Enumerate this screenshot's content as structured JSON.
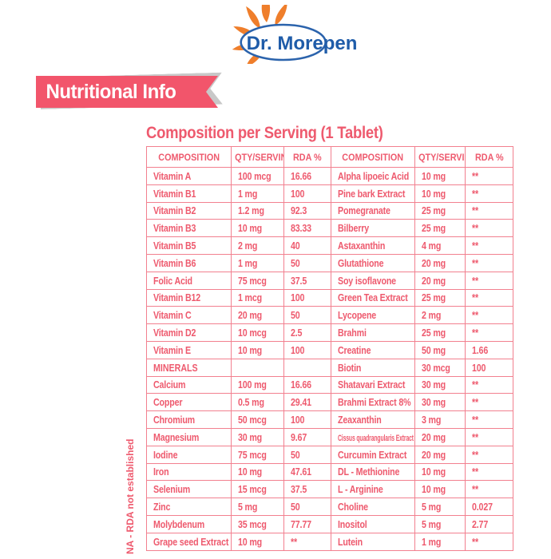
{
  "logo": {
    "brand": "Dr. Morepen"
  },
  "banner": {
    "label": "Nutritional Info"
  },
  "table": {
    "title": "Composition per Serving (1 Tablet)",
    "headers": [
      "COMPOSITION",
      "QTY/SERVING",
      "RDA %",
      "COMPOSITION",
      "QTY/SERVING",
      "RDA %"
    ],
    "footnote": "NA - RDA not established",
    "rows": [
      {
        "left": {
          "name": "Vitamin A",
          "qty": "100 mcg",
          "rda": "16.66"
        },
        "right": {
          "name": "Alpha lipoeic Acid",
          "qty": "10 mg",
          "rda": "**"
        }
      },
      {
        "left": {
          "name": "Vitamin B1",
          "qty": "1 mg",
          "rda": "100"
        },
        "right": {
          "name": "Pine bark Extract",
          "qty": "10 mg",
          "rda": "**"
        }
      },
      {
        "left": {
          "name": "Vitamin B2",
          "qty": "1.2 mg",
          "rda": "92.3"
        },
        "right": {
          "name": "Pomegranate",
          "qty": "25 mg",
          "rda": "**"
        }
      },
      {
        "left": {
          "name": "Vitamin B3",
          "qty": "10 mg",
          "rda": "83.33"
        },
        "right": {
          "name": "Bilberry",
          "qty": "25 mg",
          "rda": "**"
        }
      },
      {
        "left": {
          "name": "Vitamin B5",
          "qty": "2 mg",
          "rda": "40"
        },
        "right": {
          "name": "Astaxanthin",
          "qty": "4 mg",
          "rda": "**"
        }
      },
      {
        "left": {
          "name": "Vitamin B6",
          "qty": "1 mg",
          "rda": "50"
        },
        "right": {
          "name": "Glutathione",
          "qty": "20 mg",
          "rda": "**"
        }
      },
      {
        "left": {
          "name": "Folic Acid",
          "qty": "75 mcg",
          "rda": "37.5"
        },
        "right": {
          "name": "Soy isoflavone",
          "qty": "20 mg",
          "rda": "**"
        }
      },
      {
        "left": {
          "name": "Vitamin B12",
          "qty": "1 mcg",
          "rda": "100"
        },
        "right": {
          "name": "Green Tea Extract",
          "qty": "25 mg",
          "rda": "**"
        }
      },
      {
        "left": {
          "name": "Vitamin C",
          "qty": "20 mg",
          "rda": "50"
        },
        "right": {
          "name": "Lycopene",
          "qty": "2 mg",
          "rda": "**"
        }
      },
      {
        "left": {
          "name": "Vitamin D2",
          "qty": "10 mcg",
          "rda": "2.5"
        },
        "right": {
          "name": "Brahmi",
          "qty": "25 mg",
          "rda": "**"
        }
      },
      {
        "left": {
          "name": "Vitamin E",
          "qty": "10 mg",
          "rda": "100"
        },
        "right": {
          "name": "Creatine",
          "qty": "50 mg",
          "rda": "1.66"
        }
      },
      {
        "left": {
          "name": "MINERALS",
          "qty": "",
          "rda": "",
          "section": true
        },
        "right": {
          "name": "Biotin",
          "qty": "30 mcg",
          "rda": "100"
        }
      },
      {
        "left": {
          "name": "Calcium",
          "qty": "100 mg",
          "rda": "16.66"
        },
        "right": {
          "name": "Shatavari Extract",
          "qty": "30 mg",
          "rda": "**"
        }
      },
      {
        "left": {
          "name": "Copper",
          "qty": "0.5 mg",
          "rda": "29.41"
        },
        "right": {
          "name": "Brahmi Extract 8%",
          "qty": "30 mg",
          "rda": "**"
        }
      },
      {
        "left": {
          "name": "Chromium",
          "qty": "50 mcg",
          "rda": "100"
        },
        "right": {
          "name": "Zeaxanthin",
          "qty": "3 mg",
          "rda": "**"
        }
      },
      {
        "left": {
          "name": "Magnesium",
          "qty": "30 mg",
          "rda": "9.67"
        },
        "right": {
          "name": "Cissus quadrangularis Extract",
          "qty": "20 mg",
          "rda": "**"
        }
      },
      {
        "left": {
          "name": "Iodine",
          "qty": "75 mcg",
          "rda": "50"
        },
        "right": {
          "name": "Curcumin Extract",
          "qty": "20 mg",
          "rda": "**"
        }
      },
      {
        "left": {
          "name": "Iron",
          "qty": "10 mg",
          "rda": "47.61"
        },
        "right": {
          "name": "DL - Methionine",
          "qty": "10 mg",
          "rda": "**"
        }
      },
      {
        "left": {
          "name": "Selenium",
          "qty": "15 mcg",
          "rda": "37.5"
        },
        "right": {
          "name": "L - Arginine",
          "qty": "10 mg",
          "rda": "**"
        }
      },
      {
        "left": {
          "name": "Zinc",
          "qty": "5 mg",
          "rda": "50"
        },
        "right": {
          "name": "Choline",
          "qty": "5 mg",
          "rda": "0.027"
        }
      },
      {
        "left": {
          "name": "Molybdenum",
          "qty": "35 mcg",
          "rda": "77.77"
        },
        "right": {
          "name": "Inositol",
          "qty": "5 mg",
          "rda": "2.77"
        }
      },
      {
        "left": {
          "name": "Grape seed Extract",
          "qty": "10 mg",
          "rda": "**"
        },
        "right": {
          "name": "Lutein",
          "qty": "1 mg",
          "rda": "**"
        }
      }
    ]
  },
  "colors": {
    "accent_pink": "#ee5a6e",
    "border_pink": "#f2808f",
    "banner_pink": "#f2556b",
    "logo_blue": "#1f5ca9",
    "logo_orange": "#ef7e2b"
  }
}
